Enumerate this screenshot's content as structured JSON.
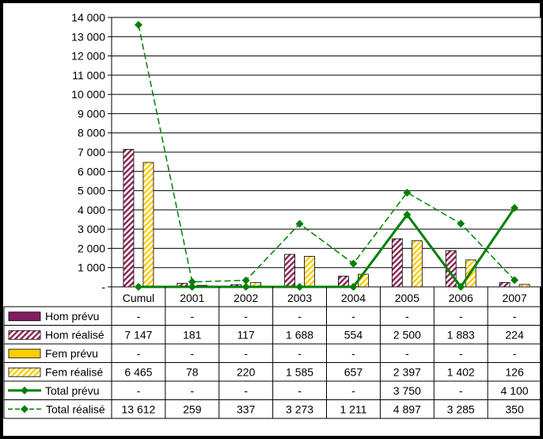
{
  "chart_data": {
    "type": "bar",
    "categories": [
      "Cumul",
      "2001",
      "2002",
      "2003",
      "2004",
      "2005",
      "2006",
      "2007"
    ],
    "ylim": [
      0,
      14000
    ],
    "y_ticks": [
      "-",
      "1 000",
      "2 000",
      "3 000",
      "4 000",
      "5 000",
      "6 000",
      "7 000",
      "8 000",
      "9 000",
      "10 000",
      "11 000",
      "12 000",
      "13 000",
      "14 000"
    ],
    "grid": true,
    "series": [
      {
        "name": "Hom prévu",
        "kind": "bar",
        "color": "#7F1F5F",
        "pattern": "solid",
        "values": [
          null,
          null,
          null,
          null,
          null,
          null,
          null,
          null
        ],
        "labels": [
          "-",
          "-",
          "-",
          "-",
          "-",
          "-",
          "-",
          "-"
        ]
      },
      {
        "name": "Hom réalisé",
        "kind": "bar",
        "color": "#8B2252",
        "pattern": "hatch",
        "values": [
          7147,
          181,
          117,
          1688,
          554,
          2500,
          1883,
          224
        ],
        "labels": [
          "7 147",
          "181",
          "117",
          "1 688",
          "554",
          "2 500",
          "1 883",
          "224"
        ]
      },
      {
        "name": "Fem prévu",
        "kind": "bar",
        "color": "#FFCC00",
        "pattern": "solid",
        "values": [
          null,
          null,
          null,
          null,
          null,
          null,
          null,
          null
        ],
        "labels": [
          "-",
          "-",
          "-",
          "-",
          "-",
          "-",
          "-",
          "-"
        ]
      },
      {
        "name": "Fem réalisé",
        "kind": "bar",
        "color": "#FFCC00",
        "pattern": "hatch",
        "values": [
          6465,
          78,
          220,
          1585,
          657,
          2397,
          1402,
          126
        ],
        "labels": [
          "6 465",
          "78",
          "220",
          "1 585",
          "657",
          "2 397",
          "1 402",
          "126"
        ]
      },
      {
        "name": "Total prévu",
        "kind": "line",
        "color": "#008000",
        "dash": false,
        "values": [
          0,
          0,
          0,
          0,
          0,
          3750,
          0,
          4100
        ],
        "labels": [
          "-",
          "-",
          "-",
          "-",
          "-",
          "3 750",
          "-",
          "4 100"
        ]
      },
      {
        "name": "Total réalisé",
        "kind": "line",
        "color": "#008000",
        "dash": true,
        "values": [
          13612,
          259,
          337,
          3273,
          1211,
          4897,
          3285,
          350
        ],
        "labels": [
          "13 612",
          "259",
          "337",
          "3 273",
          "1 211",
          "4 897",
          "3 285",
          "350"
        ]
      }
    ]
  }
}
